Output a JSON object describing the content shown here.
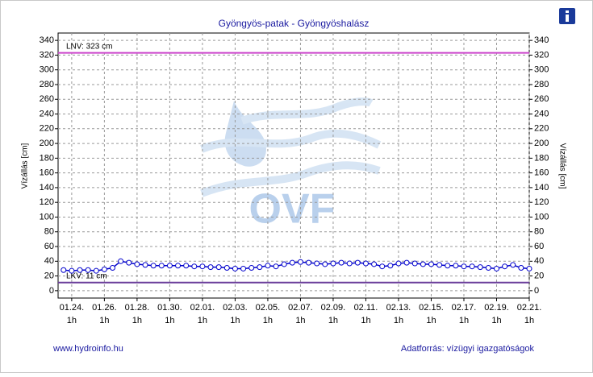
{
  "chart_data": {
    "type": "line",
    "title": "Gyöngyös-patak - Gyöngyöshalász",
    "y_label": "Vízállás [cm]",
    "y2_label": "Vízállás [cm]",
    "watermark": "OVF",
    "footer_left": "www.hydroinfo.hu",
    "footer_right": "Adatforrás: vízügyi igazgatóságok",
    "ylim": [
      -10,
      350
    ],
    "yticks": [
      0,
      20,
      40,
      60,
      80,
      100,
      120,
      140,
      160,
      180,
      200,
      220,
      240,
      260,
      280,
      300,
      320,
      340
    ],
    "y2lim": [
      -10,
      350
    ],
    "y2ticks": [
      0,
      20,
      40,
      60,
      80,
      100,
      120,
      140,
      160,
      180,
      200,
      220,
      240,
      260,
      280,
      300,
      320,
      340
    ],
    "xlim": [
      "01.23. 5h",
      "02.21. 1h"
    ],
    "xticks": [
      "01.24. 1h",
      "01.26. 1h",
      "01.28. 1h",
      "01.30. 1h",
      "02.01. 1h",
      "02.03. 1h",
      "02.05. 1h",
      "02.07. 1h",
      "02.09. 1h",
      "02.11. 1h",
      "02.13. 1h",
      "02.15. 1h",
      "02.17. 1h",
      "02.19. 1h",
      "02.21. 1h"
    ],
    "grid": true,
    "thresholds": [
      {
        "value": 323,
        "label": "LNV: 323 cm",
        "color": "#cc44cc"
      },
      {
        "value": 11,
        "label": "LKV: 11 cm",
        "color": "#6a3d9a"
      }
    ],
    "series": [
      {
        "color": "#0000cc",
        "x": [
          "01.23. 13h",
          "01.24. 1h",
          "01.24. 13h",
          "01.25. 1h",
          "01.25. 13h",
          "01.26. 1h",
          "01.26. 13h",
          "01.27. 1h",
          "01.27. 13h",
          "01.28. 1h",
          "01.28. 13h",
          "01.29. 1h",
          "01.29. 13h",
          "01.30. 1h",
          "01.30. 13h",
          "01.31. 1h",
          "01.31. 13h",
          "02.01. 1h",
          "02.01. 13h",
          "02.02. 1h",
          "02.02. 13h",
          "02.03. 1h",
          "02.03. 13h",
          "02.04. 1h",
          "02.04. 13h",
          "02.05. 1h",
          "02.05. 13h",
          "02.06. 1h",
          "02.06. 13h",
          "02.07. 1h",
          "02.07. 13h",
          "02.08. 1h",
          "02.08. 13h",
          "02.09. 1h",
          "02.09. 13h",
          "02.10. 1h",
          "02.10. 13h",
          "02.11. 1h",
          "02.11. 13h",
          "02.12. 1h",
          "02.12. 13h",
          "02.13. 1h",
          "02.13. 13h",
          "02.14. 1h",
          "02.14. 13h",
          "02.15. 1h",
          "02.15. 13h",
          "02.16. 1h",
          "02.16. 13h",
          "02.17. 1h",
          "02.17. 13h",
          "02.18. 1h",
          "02.18. 13h",
          "02.19. 1h",
          "02.19. 13h",
          "02.20. 1h",
          "02.20. 13h",
          "02.21. 1h"
        ],
        "values": [
          28,
          27,
          28,
          28,
          27,
          29,
          31,
          40,
          38,
          36,
          35,
          34,
          34,
          34,
          34,
          34,
          33,
          33,
          32,
          32,
          31,
          30,
          30,
          31,
          32,
          34,
          33,
          36,
          38,
          39,
          38,
          37,
          36,
          37,
          38,
          37,
          38,
          37,
          36,
          33,
          34,
          37,
          38,
          37,
          36,
          36,
          35,
          34,
          34,
          33,
          33,
          32,
          31,
          30,
          33,
          35,
          31,
          30
        ]
      }
    ]
  }
}
